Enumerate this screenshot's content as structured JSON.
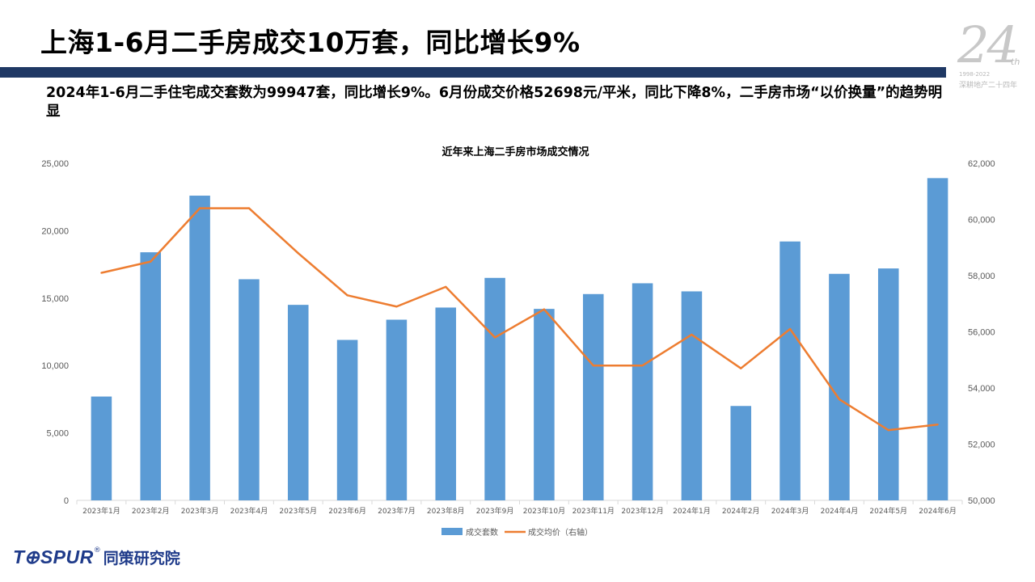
{
  "slide": {
    "title": "上海1-6月二手房成交10万套，同比增长9%",
    "summary": "2024年1-6月二手住宅成交套数为99947套，同比增长9%。6月份成交价格52698元/平米，同比下降8%，二手房市场“以价换量”的趋势明显"
  },
  "logo": {
    "number": "24",
    "suffix": "th",
    "years": "1998-2022",
    "subtitle": "深耕地产二十四年"
  },
  "brand": {
    "name_en": "T",
    "name_en_rest": "SPUR",
    "registered": "®",
    "name_cn": "同策研究院",
    "accent": "#1f3b8a"
  },
  "chart_data": {
    "type": "bar+line",
    "title": "近年来上海二手房市场成交情况",
    "categories": [
      "2023年1月",
      "2023年2月",
      "2023年3月",
      "2023年4月",
      "2023年5月",
      "2023年6月",
      "2023年7月",
      "2023年8月",
      "2023年9月",
      "2023年10月",
      "2023年11月",
      "2023年12月",
      "2024年1月",
      "2024年2月",
      "2024年3月",
      "2024年4月",
      "2024年5月",
      "2024年6月"
    ],
    "series": [
      {
        "name": "成交套数",
        "type": "bar",
        "axis": "left",
        "color": "#5b9bd5",
        "values": [
          7700,
          18400,
          22600,
          16400,
          14500,
          11900,
          13400,
          14300,
          16500,
          14200,
          15300,
          16100,
          15500,
          7000,
          19200,
          16800,
          17200,
          23900
        ]
      },
      {
        "name": "成交均价（右轴）",
        "type": "line",
        "axis": "right",
        "color": "#ed7d31",
        "values": [
          58100,
          58500,
          60400,
          60400,
          58800,
          57300,
          56900,
          57600,
          55800,
          56800,
          54800,
          54800,
          55900,
          54700,
          56100,
          53600,
          52500,
          52698
        ]
      }
    ],
    "y_left": {
      "min": 0,
      "max": 25000,
      "ticks": [
        0,
        5000,
        10000,
        15000,
        20000,
        25000
      ],
      "tick_labels": [
        "0",
        "5,000",
        "10,000",
        "15,000",
        "20,000",
        "25,000"
      ]
    },
    "y_right": {
      "min": 50000,
      "max": 62000,
      "ticks": [
        50000,
        52000,
        54000,
        56000,
        58000,
        60000,
        62000
      ],
      "tick_labels": [
        "50,000",
        "52,000",
        "54,000",
        "56,000",
        "58,000",
        "60,000",
        "62,000"
      ]
    },
    "grid": false,
    "legend_position": "bottom"
  }
}
